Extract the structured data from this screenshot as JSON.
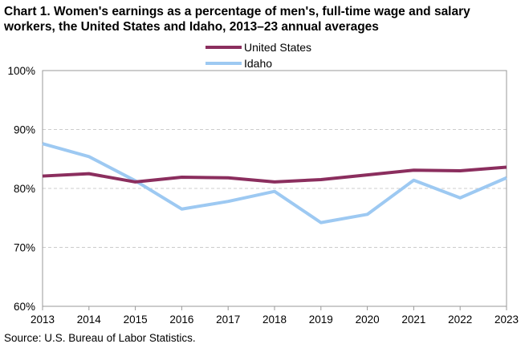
{
  "page": {
    "source": "Source:  U.S. Bureau of Labor Statistics."
  },
  "chart_data": {
    "type": "line",
    "title": "Chart 1. Women's earnings as a percentage of men's, full-time wage and salary workers, the United States and Idaho, 2013–23 annual averages",
    "xlabel": "",
    "ylabel": "",
    "x": [
      "2013",
      "2014",
      "2015",
      "2016",
      "2017",
      "2018",
      "2019",
      "2020",
      "2021",
      "2022",
      "2023"
    ],
    "ylim": [
      60,
      100
    ],
    "yticks": [
      60,
      70,
      80,
      90,
      100
    ],
    "ytick_labels": [
      "60%",
      "70%",
      "80%",
      "90%",
      "100%"
    ],
    "grid": "horizontal dashed",
    "legend_placement": "top-center",
    "series": [
      {
        "name": "United States",
        "color": "#8B2E5E",
        "values": [
          82.1,
          82.5,
          81.1,
          81.9,
          81.8,
          81.1,
          81.5,
          82.3,
          83.1,
          83.0,
          83.6
        ]
      },
      {
        "name": "Idaho",
        "color": "#9DC9F2",
        "values": [
          87.6,
          85.4,
          81.3,
          76.5,
          77.8,
          79.5,
          74.2,
          75.6,
          81.4,
          78.4,
          81.8
        ]
      }
    ]
  }
}
